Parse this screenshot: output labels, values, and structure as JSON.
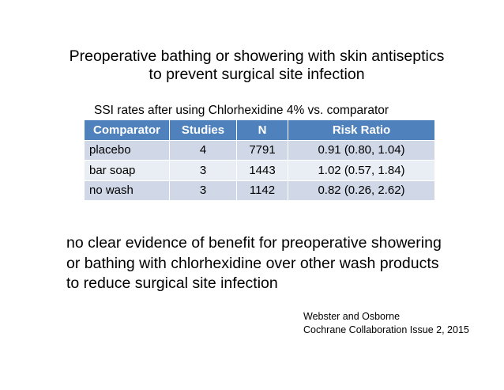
{
  "title": {
    "line1": "Preoperative bathing or showering with skin antiseptics",
    "line2": "to prevent surgical site infection"
  },
  "table": {
    "caption": "SSI rates after using Chlorhexidine 4% vs. comparator",
    "headers": [
      "Comparator",
      "Studies",
      "N",
      "Risk Ratio"
    ],
    "rows": [
      [
        "placebo",
        "4",
        "7791",
        "0.91 (0.80, 1.04)"
      ],
      [
        "bar soap",
        "3",
        "1443",
        "1.02 (0.57, 1.84)"
      ],
      [
        "no wash",
        "3",
        "1142",
        "0.82 (0.26, 2.62)"
      ]
    ]
  },
  "conclusion": {
    "line1": "no clear evidence of benefit for preoperative showering",
    "line2": "or bathing with chlorhexidine over other wash products",
    "line3": "to reduce surgical site infection"
  },
  "citation": {
    "line1": "Webster and Osborne",
    "line2": "Cochrane Collaboration Issue 2, 2015"
  }
}
